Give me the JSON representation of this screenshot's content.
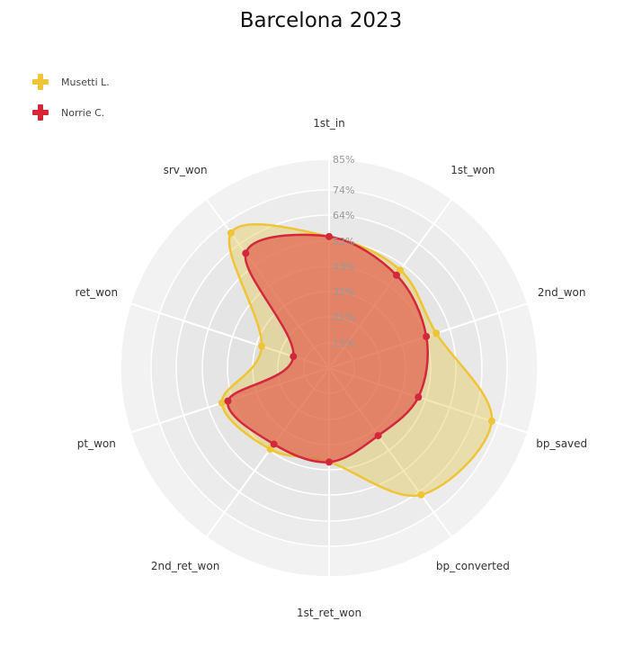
{
  "chart_data": {
    "type": "radar",
    "title": "Barcelona 2023",
    "axes": [
      "1st_in",
      "1st_won",
      "2nd_won",
      "bp_saved",
      "bp_converted",
      "1st_ret_won",
      "2nd_ret_won",
      "pt_won",
      "ret_won",
      "srv_won"
    ],
    "radial_ticks": [
      "11%",
      "21%",
      "32%",
      "43%",
      "53%",
      "64%",
      "74%",
      "85%"
    ],
    "radial_max": 85,
    "legend_position": "top-left",
    "series": [
      {
        "name": "Musetti L.",
        "color": "#f0c437",
        "fill": "rgba(228,200,80,0.42)",
        "values": [
          63,
          58,
          54,
          82,
          75,
          45,
          48,
          54,
          34,
          80
        ]
      },
      {
        "name": "Norrie C.",
        "color": "#d3283c",
        "fill": "rgba(225,100,80,0.72)",
        "values": [
          63,
          55,
          49,
          45,
          40,
          45,
          45,
          51,
          18,
          68
        ]
      }
    ]
  }
}
